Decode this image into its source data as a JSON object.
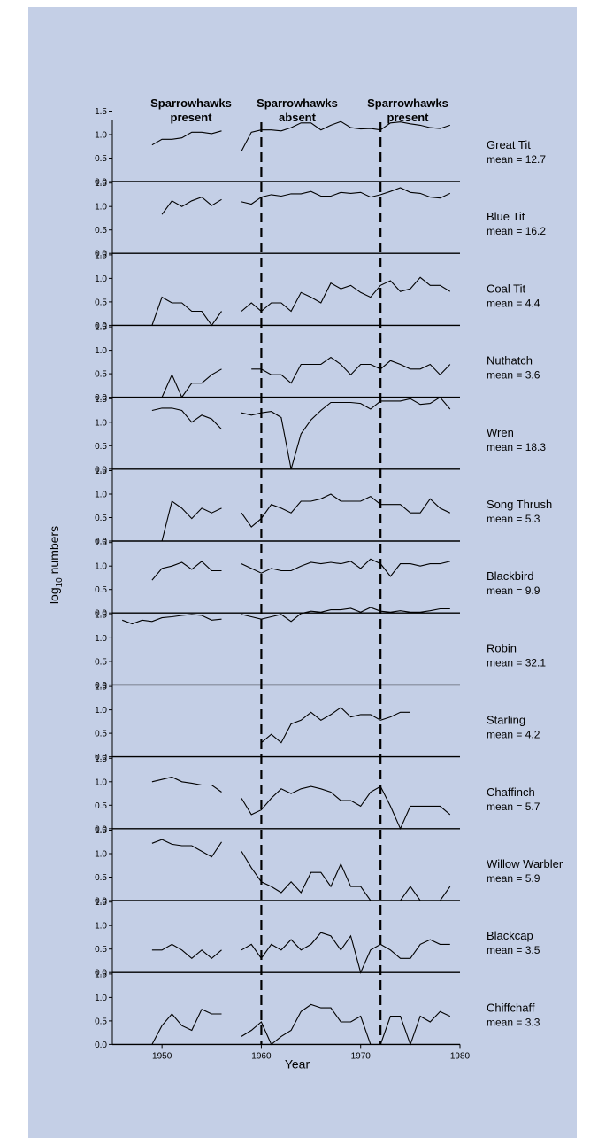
{
  "chart_data": {
    "type": "line",
    "ylabel": "log10 numbers",
    "xlabel": "Year",
    "x_ticks": [
      1950,
      1960,
      1970,
      1980
    ],
    "xlim": [
      1945,
      1980
    ],
    "ylim": [
      0,
      1.6
    ],
    "y_ticks": [
      "0.0",
      "0.5",
      "1.0",
      "1.5"
    ],
    "grid": false,
    "periods": [
      {
        "label_line1": "Sparrowhawks",
        "label_line2": "present"
      },
      {
        "label_line1": "Sparrowhawks",
        "label_line2": "absent"
      },
      {
        "label_line1": "Sparrowhawks",
        "label_line2": "present"
      }
    ],
    "divider_years": [
      1960,
      1972
    ],
    "panels": [
      {
        "name": "Great Tit",
        "mean": "mean = 12.7",
        "segments": [
          {
            "x": [
              1949,
              1950,
              1951,
              1952,
              1953,
              1954,
              1955,
              1956
            ],
            "y": [
              0.78,
              0.9,
              0.9,
              0.93,
              1.05,
              1.05,
              1.02,
              1.08
            ]
          },
          {
            "x": [
              1958,
              1959,
              1960,
              1961,
              1962,
              1963,
              1964,
              1965,
              1966,
              1967,
              1968,
              1969,
              1970,
              1971,
              1972,
              1973,
              1974,
              1975,
              1976,
              1977,
              1978,
              1979
            ],
            "y": [
              0.65,
              1.05,
              1.1,
              1.1,
              1.08,
              1.15,
              1.25,
              1.25,
              1.1,
              1.2,
              1.28,
              1.15,
              1.12,
              1.13,
              1.1,
              1.25,
              1.27,
              1.23,
              1.2,
              1.15,
              1.13,
              1.2
            ]
          }
        ]
      },
      {
        "name": "Blue Tit",
        "mean": "mean = 16.2",
        "segments": [
          {
            "x": [
              1950,
              1951,
              1952,
              1953,
              1954,
              1955,
              1956
            ],
            "y": [
              0.83,
              1.12,
              1.0,
              1.12,
              1.2,
              1.02,
              1.15
            ]
          },
          {
            "x": [
              1958,
              1959,
              1960,
              1961,
              1962,
              1963,
              1964,
              1965,
              1966,
              1967,
              1968,
              1969,
              1970,
              1971,
              1972,
              1973,
              1974,
              1975,
              1976,
              1977,
              1978,
              1979
            ],
            "y": [
              1.1,
              1.05,
              1.2,
              1.25,
              1.22,
              1.27,
              1.27,
              1.32,
              1.22,
              1.22,
              1.3,
              1.28,
              1.3,
              1.2,
              1.25,
              1.32,
              1.4,
              1.3,
              1.28,
              1.2,
              1.18,
              1.28
            ]
          }
        ]
      },
      {
        "name": "Coal Tit",
        "mean": "mean = 4.4",
        "segments": [
          {
            "x": [
              1949,
              1950,
              1951,
              1952,
              1953,
              1954,
              1955,
              1956
            ],
            "y": [
              0.0,
              0.6,
              0.48,
              0.48,
              0.3,
              0.3,
              0.0,
              0.3
            ]
          },
          {
            "x": [
              1958,
              1959,
              1960,
              1961,
              1962,
              1963,
              1964,
              1965,
              1966,
              1967,
              1968,
              1969,
              1970,
              1971,
              1972,
              1973,
              1974,
              1975,
              1976,
              1977,
              1978,
              1979
            ],
            "y": [
              0.3,
              0.48,
              0.3,
              0.48,
              0.48,
              0.3,
              0.7,
              0.6,
              0.48,
              0.9,
              0.78,
              0.85,
              0.7,
              0.6,
              0.85,
              0.95,
              0.72,
              0.78,
              1.02,
              0.85,
              0.85,
              0.72
            ]
          }
        ]
      },
      {
        "name": "Nuthatch",
        "mean": "mean = 3.6",
        "segments": [
          {
            "x": [
              1950,
              1951,
              1952,
              1953,
              1954,
              1955,
              1956
            ],
            "y": [
              0.0,
              0.48,
              0.0,
              0.3,
              0.3,
              0.48,
              0.6
            ]
          },
          {
            "x": [
              1959,
              1960,
              1961,
              1962,
              1963,
              1964,
              1965,
              1966,
              1967,
              1968,
              1969,
              1970,
              1971,
              1972,
              1973,
              1974,
              1975,
              1976,
              1977,
              1978,
              1979
            ],
            "y": [
              0.6,
              0.6,
              0.48,
              0.48,
              0.3,
              0.7,
              0.7,
              0.7,
              0.85,
              0.7,
              0.48,
              0.7,
              0.7,
              0.6,
              0.78,
              0.7,
              0.6,
              0.6,
              0.7,
              0.48,
              0.7
            ]
          }
        ]
      },
      {
        "name": "Wren",
        "mean": "mean = 18.3",
        "segments": [
          {
            "x": [
              1949,
              1950,
              1951,
              1952,
              1953,
              1954,
              1955,
              1956
            ],
            "y": [
              1.25,
              1.3,
              1.3,
              1.25,
              1.0,
              1.15,
              1.07,
              0.85
            ]
          },
          {
            "x": [
              1958,
              1959,
              1960,
              1961,
              1962,
              1963,
              1964,
              1965,
              1966,
              1967,
              1968,
              1969,
              1970,
              1971,
              1972,
              1973,
              1974,
              1975,
              1976,
              1977,
              1978,
              1979
            ],
            "y": [
              1.2,
              1.15,
              1.2,
              1.23,
              1.1,
              0.0,
              0.75,
              1.05,
              1.25,
              1.42,
              1.42,
              1.42,
              1.4,
              1.28,
              1.45,
              1.45,
              1.45,
              1.5,
              1.38,
              1.4,
              1.53,
              1.28
            ]
          }
        ]
      },
      {
        "name": "Song Thrush",
        "mean": "mean = 5.3",
        "segments": [
          {
            "x": [
              1950,
              1951,
              1952,
              1953,
              1954,
              1955,
              1956
            ],
            "y": [
              0.0,
              0.85,
              0.7,
              0.48,
              0.7,
              0.6,
              0.7
            ]
          },
          {
            "x": [
              1958,
              1959,
              1960,
              1961,
              1962,
              1963,
              1964,
              1965,
              1966,
              1967,
              1968,
              1969,
              1970,
              1971,
              1972,
              1973,
              1974,
              1975,
              1976,
              1977,
              1978,
              1979
            ],
            "y": [
              0.6,
              0.3,
              0.48,
              0.78,
              0.7,
              0.6,
              0.85,
              0.85,
              0.9,
              1.0,
              0.85,
              0.85,
              0.85,
              0.95,
              0.78,
              0.78,
              0.78,
              0.6,
              0.6,
              0.9,
              0.7,
              0.6
            ]
          }
        ]
      },
      {
        "name": "Blackbird",
        "mean": "mean = 9.9",
        "segments": [
          {
            "x": [
              1949,
              1950,
              1951,
              1952,
              1953,
              1954,
              1955,
              1956
            ],
            "y": [
              0.7,
              0.95,
              1.0,
              1.08,
              0.93,
              1.1,
              0.9,
              0.9
            ]
          },
          {
            "x": [
              1958,
              1959,
              1960,
              1961,
              1962,
              1963,
              1964,
              1965,
              1966,
              1967,
              1968,
              1969,
              1970,
              1971,
              1972,
              1973,
              1974,
              1975,
              1976,
              1977,
              1978,
              1979
            ],
            "y": [
              1.05,
              0.95,
              0.85,
              0.95,
              0.9,
              0.9,
              1.0,
              1.08,
              1.05,
              1.08,
              1.05,
              1.1,
              0.95,
              1.15,
              1.05,
              0.78,
              1.05,
              1.05,
              1.0,
              1.05,
              1.05,
              1.1
            ]
          }
        ]
      },
      {
        "name": "Robin",
        "mean": "mean = 32.1",
        "segments": [
          {
            "x": [
              1946,
              1947,
              1948,
              1949,
              1950,
              1951,
              1952,
              1953,
              1954,
              1955,
              1956
            ],
            "y": [
              1.38,
              1.3,
              1.38,
              1.35,
              1.43,
              1.45,
              1.48,
              1.5,
              1.48,
              1.38,
              1.4
            ]
          },
          {
            "x": [
              1958,
              1959,
              1960,
              1961,
              1962,
              1963,
              1964,
              1965,
              1966,
              1967,
              1968,
              1969,
              1970,
              1971,
              1972,
              1973,
              1974,
              1975,
              1976,
              1977,
              1978,
              1979
            ],
            "y": [
              1.5,
              1.45,
              1.4,
              1.45,
              1.5,
              1.35,
              1.52,
              1.57,
              1.55,
              1.6,
              1.6,
              1.63,
              1.55,
              1.65,
              1.57,
              1.55,
              1.58,
              1.55,
              1.55,
              1.58,
              1.62,
              1.62
            ]
          }
        ]
      },
      {
        "name": "Starling",
        "mean": "mean = 4.2",
        "segments": [
          {
            "x": [
              1960,
              1961,
              1962,
              1963,
              1964,
              1965,
              1966,
              1967,
              1968,
              1969,
              1970,
              1971,
              1972,
              1973,
              1974,
              1975
            ],
            "y": [
              0.3,
              0.48,
              0.3,
              0.7,
              0.78,
              0.95,
              0.78,
              0.9,
              1.05,
              0.85,
              0.9,
              0.9,
              0.78,
              0.85,
              0.95,
              0.95
            ]
          }
        ]
      },
      {
        "name": "Chaffinch",
        "mean": "mean = 5.7",
        "segments": [
          {
            "x": [
              1949,
              1950,
              1951,
              1952,
              1953,
              1954,
              1955,
              1956
            ],
            "y": [
              1.0,
              1.05,
              1.1,
              1.0,
              0.97,
              0.93,
              0.93,
              0.78
            ]
          },
          {
            "x": [
              1958,
              1959,
              1960,
              1961,
              1962,
              1963,
              1964,
              1965,
              1966,
              1967,
              1968,
              1969,
              1970,
              1971,
              1972,
              1973,
              1974,
              1975,
              1976,
              1977,
              1978,
              1979
            ],
            "y": [
              0.65,
              0.3,
              0.4,
              0.65,
              0.85,
              0.75,
              0.85,
              0.9,
              0.85,
              0.78,
              0.6,
              0.6,
              0.48,
              0.78,
              0.9,
              0.48,
              0.0,
              0.48,
              0.48,
              0.48,
              0.48,
              0.3
            ]
          }
        ]
      },
      {
        "name": "Willow Warbler",
        "mean": "mean = 5.9",
        "segments": [
          {
            "x": [
              1949,
              1950,
              1951,
              1952,
              1953,
              1954,
              1955,
              1956
            ],
            "y": [
              1.22,
              1.3,
              1.2,
              1.17,
              1.17,
              1.05,
              0.93,
              1.25
            ]
          },
          {
            "x": [
              1958,
              1959,
              1960,
              1961,
              1962,
              1963,
              1964,
              1965,
              1966,
              1967,
              1968,
              1969,
              1970,
              1971
            ],
            "y": [
              1.05,
              0.7,
              0.4,
              0.3,
              0.17,
              0.4,
              0.17,
              0.6,
              0.6,
              0.3,
              0.78,
              0.3,
              0.3,
              0.0
            ]
          },
          {
            "x": [
              1974,
              1975,
              1976
            ],
            "y": [
              0.0,
              0.3,
              0.0
            ]
          },
          {
            "x": [
              1978,
              1979
            ],
            "y": [
              0.0,
              0.3
            ]
          }
        ]
      },
      {
        "name": "Blackcap",
        "mean": "mean = 3.5",
        "segments": [
          {
            "x": [
              1949,
              1950,
              1951,
              1952,
              1953,
              1954,
              1955,
              1956
            ],
            "y": [
              0.48,
              0.48,
              0.6,
              0.48,
              0.3,
              0.48,
              0.3,
              0.48
            ]
          },
          {
            "x": [
              1958,
              1959,
              1960,
              1961,
              1962,
              1963,
              1964,
              1965,
              1966,
              1967,
              1968,
              1969,
              1970,
              1971,
              1972,
              1973,
              1974,
              1975,
              1976,
              1977,
              1978,
              1979
            ],
            "y": [
              0.48,
              0.6,
              0.3,
              0.6,
              0.48,
              0.7,
              0.48,
              0.6,
              0.85,
              0.78,
              0.48,
              0.78,
              0.0,
              0.48,
              0.6,
              0.48,
              0.3,
              0.3,
              0.6,
              0.7,
              0.6,
              0.6
            ]
          }
        ]
      },
      {
        "name": "Chiffchaff",
        "mean": "mean = 3.3",
        "segments": [
          {
            "x": [
              1949,
              1950,
              1951,
              1952,
              1953,
              1954,
              1955,
              1956
            ],
            "y": [
              0.0,
              0.4,
              0.65,
              0.4,
              0.3,
              0.75,
              0.65,
              0.65
            ]
          },
          {
            "x": [
              1958,
              1959,
              1960,
              1961,
              1962,
              1963,
              1964,
              1965,
              1966,
              1967,
              1968,
              1969,
              1970,
              1971
            ],
            "y": [
              0.17,
              0.3,
              0.48,
              0.0,
              0.17,
              0.3,
              0.7,
              0.85,
              0.78,
              0.78,
              0.48,
              0.48,
              0.6,
              0.0
            ]
          },
          {
            "x": [
              1972,
              1973,
              1974,
              1975,
              1976,
              1977,
              1978,
              1979
            ],
            "y": [
              0.0,
              0.6,
              0.6,
              0.0,
              0.6,
              0.48,
              0.7,
              0.6
            ]
          }
        ]
      }
    ]
  }
}
